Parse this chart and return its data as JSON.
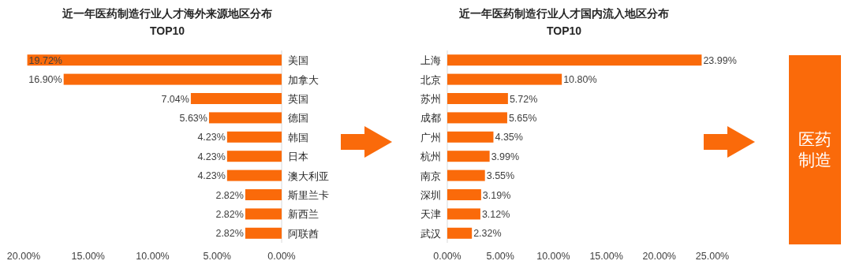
{
  "chart_data": [
    {
      "type": "bar",
      "orientation": "horizontal",
      "title": "近一年医药制造行业人才海外来源地区分布",
      "subtitle": "TOP10",
      "color": "#fa6a0a",
      "categories": [
        "美国",
        "加拿大",
        "英国",
        "德国",
        "韩国",
        "日本",
        "澳大利亚",
        "斯里兰卡",
        "新西兰",
        "阿联酋"
      ],
      "values": [
        19.72,
        16.9,
        7.04,
        5.63,
        4.23,
        4.23,
        4.23,
        2.82,
        2.82,
        2.82
      ],
      "value_labels": [
        "19.72%",
        "16.90%",
        "7.04%",
        "5.63%",
        "4.23%",
        "4.23%",
        "4.23%",
        "2.82%",
        "2.82%",
        "2.82%"
      ],
      "xlim": [
        20,
        0
      ],
      "xticks": [
        {
          "value": 20,
          "label": "20.00%"
        },
        {
          "value": 15,
          "label": "15.00%"
        },
        {
          "value": 10,
          "label": "10.00%"
        },
        {
          "value": 5,
          "label": "5.00%"
        },
        {
          "value": 0,
          "label": "0.00%"
        }
      ]
    },
    {
      "type": "bar",
      "orientation": "horizontal",
      "title": "近一年医药制造行业人才国内流入地区分布",
      "subtitle": "TOP10",
      "color": "#fa6a0a",
      "categories": [
        "上海",
        "北京",
        "苏州",
        "成都",
        "广州",
        "杭州",
        "南京",
        "深圳",
        "天津",
        "武汉"
      ],
      "values": [
        23.99,
        10.8,
        5.72,
        5.65,
        4.35,
        3.99,
        3.55,
        3.19,
        3.12,
        2.32
      ],
      "value_labels": [
        "23.99%",
        "10.80%",
        "5.72%",
        "5.65%",
        "4.35%",
        "3.99%",
        "3.55%",
        "3.19%",
        "3.12%",
        "2.32%"
      ],
      "xlim": [
        0,
        25
      ],
      "xticks": [
        {
          "value": 0,
          "label": "0.00%"
        },
        {
          "value": 5,
          "label": "5.00%"
        },
        {
          "value": 10,
          "label": "10.00%"
        },
        {
          "value": 15,
          "label": "15.00%"
        },
        {
          "value": 20,
          "label": "20.00%"
        },
        {
          "value": 25,
          "label": "25.00%"
        }
      ]
    },
    {
      "type": "other",
      "title": "医药制造",
      "color": "#fa6a0a"
    }
  ]
}
